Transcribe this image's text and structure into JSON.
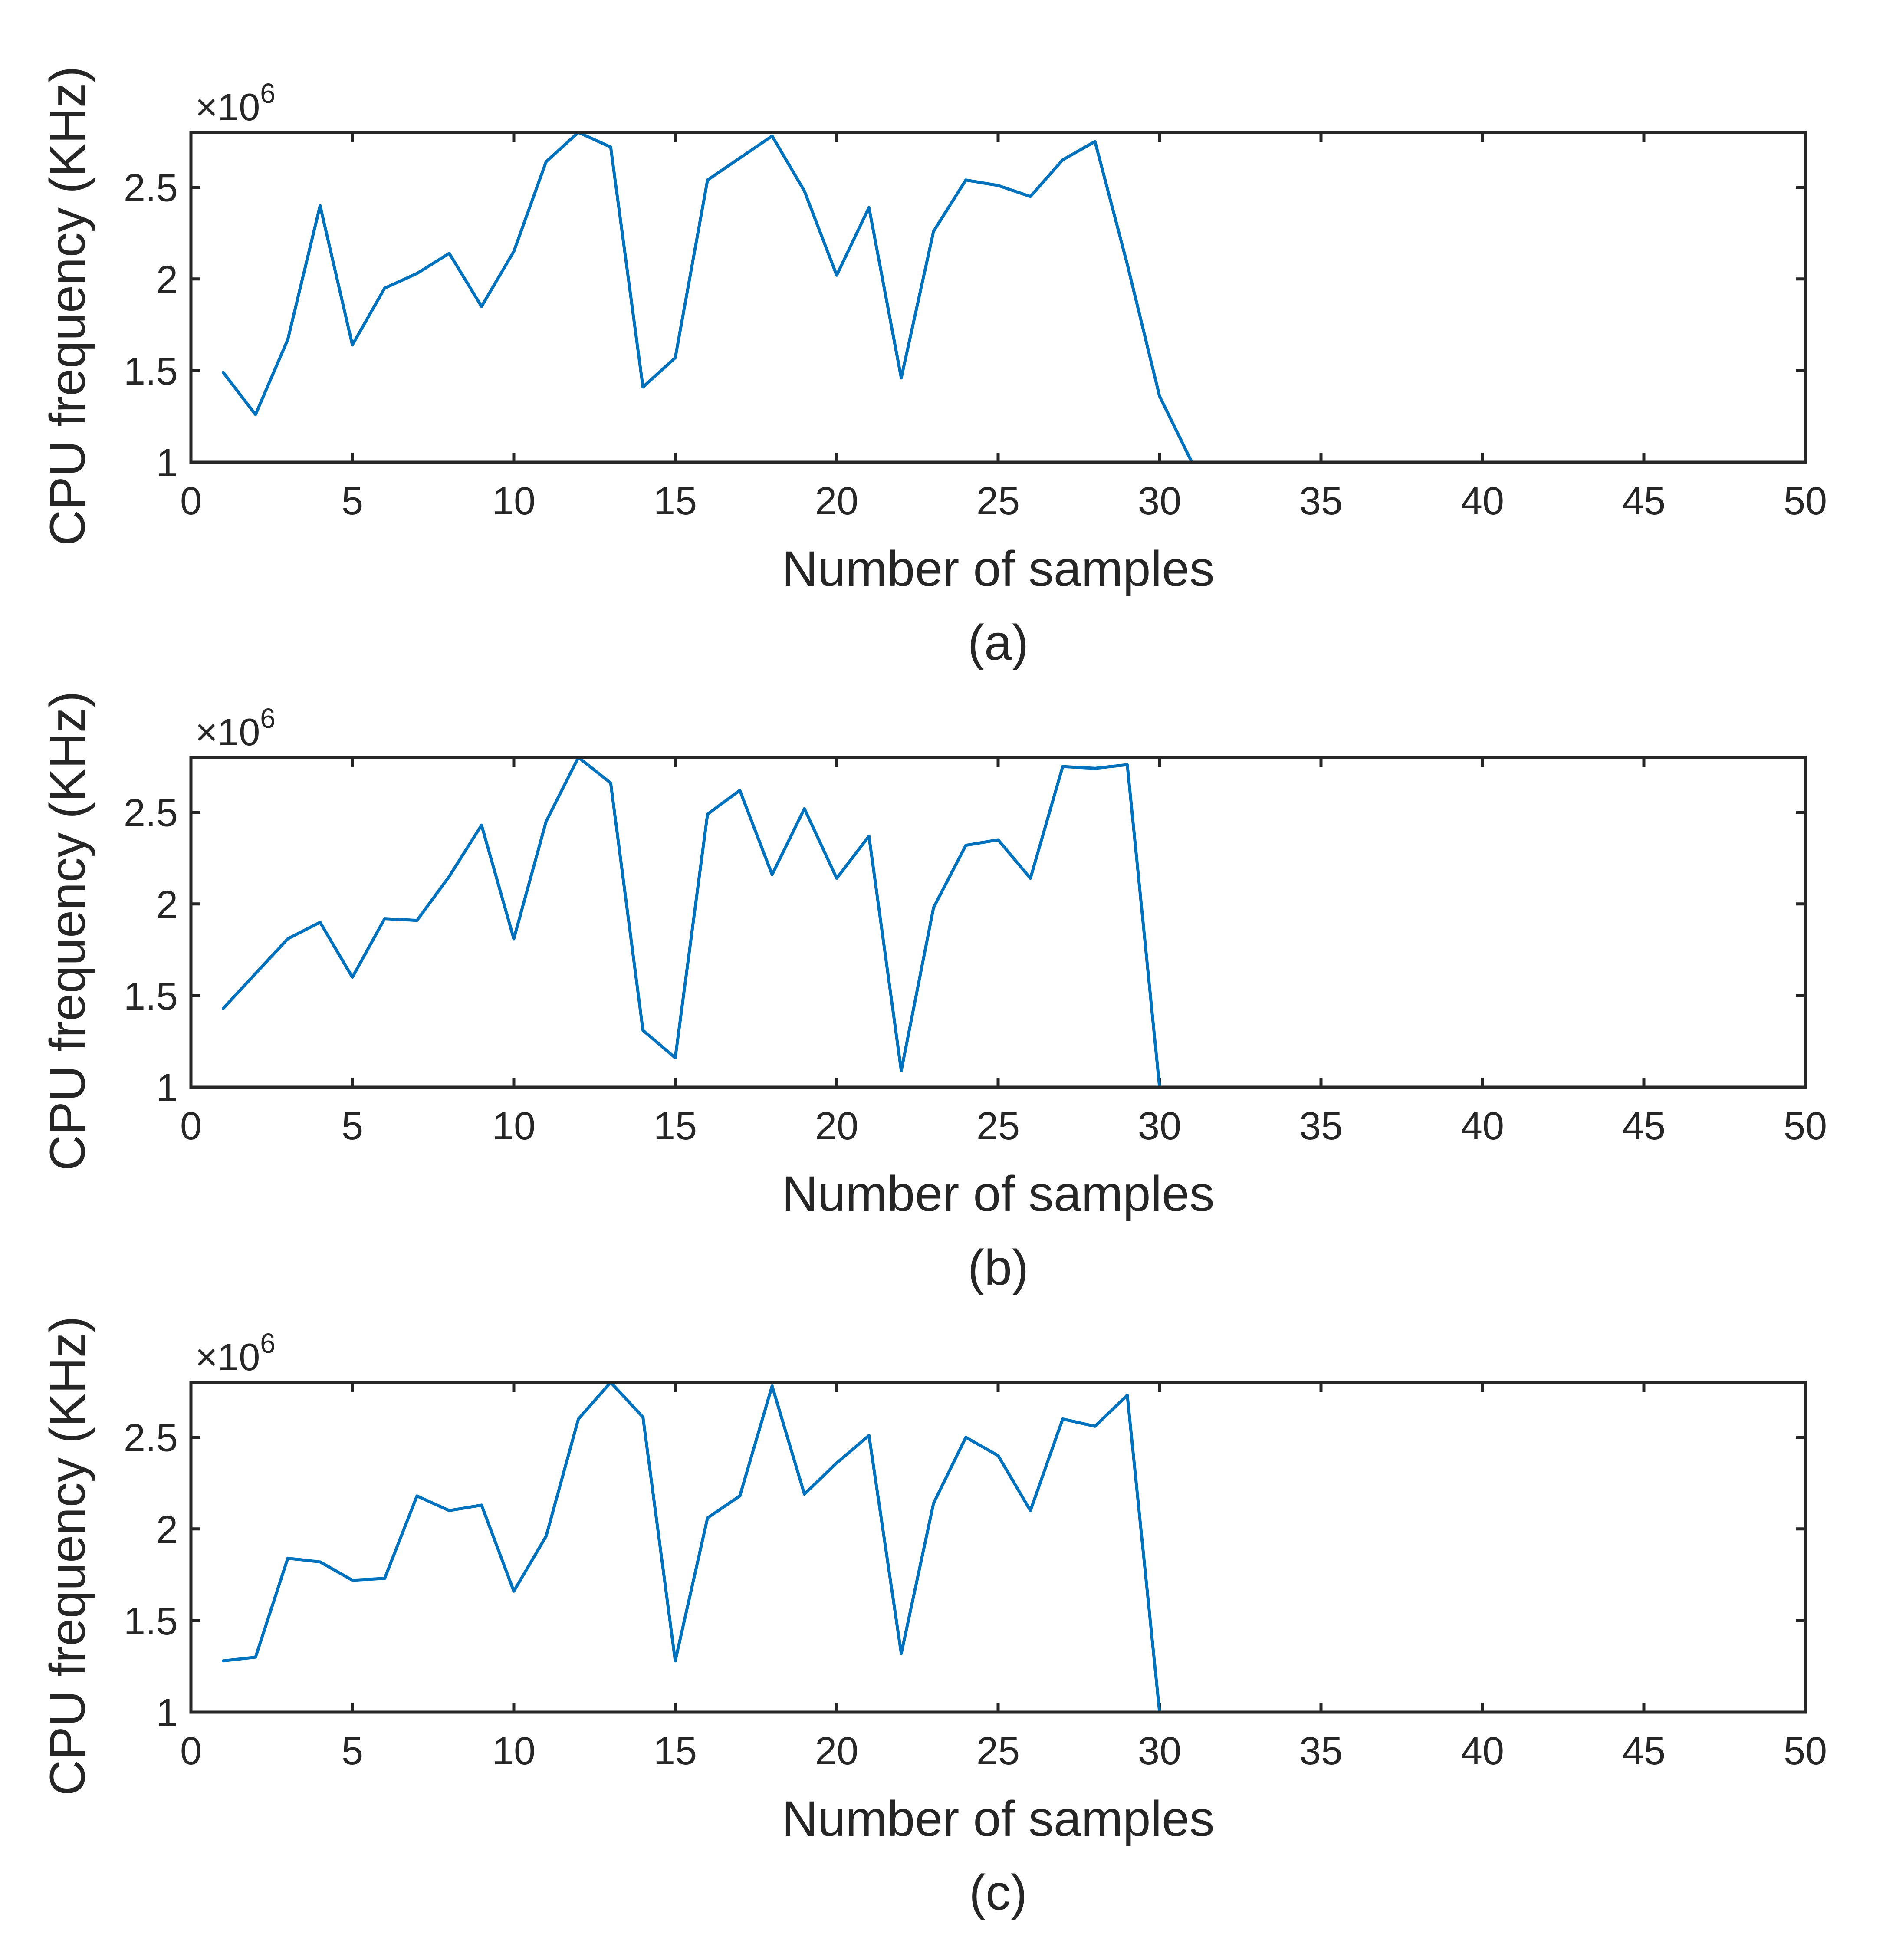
{
  "chart_data": [
    {
      "type": "line",
      "caption": "(a)",
      "xlabel": "Number of samples",
      "ylabel": "CPU frequency (KHz)",
      "exponent_label": "×10",
      "exponent_power": "6",
      "xlim": [
        0,
        50
      ],
      "ylim": [
        1,
        2.8
      ],
      "xticks": [
        "0",
        "5",
        "10",
        "15",
        "20",
        "25",
        "30",
        "35",
        "40",
        "45",
        "50"
      ],
      "yticks": [
        "1",
        "1.5",
        "2",
        "2.5"
      ],
      "color": "#0072BD",
      "x": [
        1,
        2,
        3,
        4,
        5,
        6,
        7,
        8,
        9,
        10,
        11,
        12,
        13,
        14,
        15,
        16,
        17,
        18,
        19,
        20,
        21,
        22,
        23,
        24,
        25,
        26,
        27,
        28,
        29,
        30,
        31,
        32,
        33,
        34,
        35,
        36,
        37,
        38,
        39,
        40,
        41,
        42,
        43,
        44,
        45,
        46,
        47,
        48,
        49,
        50
      ],
      "values": [
        1.49,
        1.26,
        1.67,
        2.4,
        1.64,
        1.95,
        2.03,
        2.14,
        1.85,
        2.15,
        2.64,
        2.8,
        2.72,
        1.41,
        1.57,
        2.54,
        2.66,
        2.78,
        2.48,
        2.02,
        2.39,
        1.46,
        2.26,
        2.54,
        2.51,
        2.45,
        2.65,
        2.75,
        2.08,
        1.36,
        1.0,
        1.0,
        1.0,
        1.0,
        1.0,
        1.0,
        1.0,
        1.0,
        1.0,
        1.0,
        1.0,
        1.0,
        1.0,
        1.0,
        1.0,
        1.0,
        1.0,
        1.0,
        1.0,
        1.0
      ]
    },
    {
      "type": "line",
      "caption": "(b)",
      "xlabel": "Number of samples",
      "ylabel": "CPU frequency (KHz)",
      "exponent_label": "×10",
      "exponent_power": "6",
      "xlim": [
        0,
        50
      ],
      "ylim": [
        1,
        2.8
      ],
      "xticks": [
        "0",
        "5",
        "10",
        "15",
        "20",
        "25",
        "30",
        "35",
        "40",
        "45",
        "50"
      ],
      "yticks": [
        "1",
        "1.5",
        "2",
        "2.5"
      ],
      "color": "#0072BD",
      "x": [
        1,
        2,
        3,
        4,
        5,
        6,
        7,
        8,
        9,
        10,
        11,
        12,
        13,
        14,
        15,
        16,
        17,
        18,
        19,
        20,
        21,
        22,
        23,
        24,
        25,
        26,
        27,
        28,
        29,
        30,
        31,
        32,
        33,
        34,
        35,
        36,
        37,
        38,
        39,
        40,
        41,
        42,
        43,
        44,
        45,
        46,
        47,
        48,
        49,
        50
      ],
      "values": [
        1.43,
        1.62,
        1.81,
        1.9,
        1.6,
        1.92,
        1.91,
        2.15,
        2.43,
        1.81,
        2.45,
        2.8,
        2.66,
        1.31,
        1.16,
        2.49,
        2.62,
        2.16,
        2.52,
        2.14,
        2.37,
        1.09,
        1.98,
        2.32,
        2.35,
        2.14,
        2.75,
        2.74,
        2.76,
        1.0,
        1.0,
        1.0,
        1.0,
        1.0,
        1.0,
        1.0,
        1.0,
        1.0,
        1.0,
        1.0,
        1.0,
        1.0,
        1.0,
        1.0,
        1.0,
        1.0,
        1.0,
        1.0,
        1.0,
        1.0
      ]
    },
    {
      "type": "line",
      "caption": "(c)",
      "xlabel": "Number of samples",
      "ylabel": "CPU frequency (KHz)",
      "exponent_label": "×10",
      "exponent_power": "6",
      "xlim": [
        0,
        50
      ],
      "ylim": [
        1,
        2.8
      ],
      "xticks": [
        "0",
        "5",
        "10",
        "15",
        "20",
        "25",
        "30",
        "35",
        "40",
        "45",
        "50"
      ],
      "yticks": [
        "1",
        "1.5",
        "2",
        "2.5"
      ],
      "color": "#0072BD",
      "x": [
        1,
        2,
        3,
        4,
        5,
        6,
        7,
        8,
        9,
        10,
        11,
        12,
        13,
        14,
        15,
        16,
        17,
        18,
        19,
        20,
        21,
        22,
        23,
        24,
        25,
        26,
        27,
        28,
        29,
        30,
        31,
        32,
        33,
        34,
        35,
        36,
        37,
        38,
        39,
        40,
        41,
        42,
        43,
        44,
        45,
        46,
        47,
        48,
        49,
        50
      ],
      "values": [
        1.28,
        1.3,
        1.84,
        1.82,
        1.72,
        1.73,
        2.18,
        2.1,
        2.13,
        1.66,
        1.96,
        2.6,
        2.8,
        2.61,
        1.28,
        2.06,
        2.18,
        2.78,
        2.19,
        2.36,
        2.51,
        1.32,
        2.14,
        2.5,
        2.4,
        2.1,
        2.6,
        2.56,
        2.73,
        1.0,
        1.0,
        1.0,
        1.0,
        1.0,
        1.0,
        1.0,
        1.0,
        1.0,
        1.0,
        1.0,
        1.0,
        1.0,
        1.0,
        1.0,
        1.0,
        1.0,
        1.0,
        1.0,
        1.0,
        1.0
      ]
    }
  ]
}
